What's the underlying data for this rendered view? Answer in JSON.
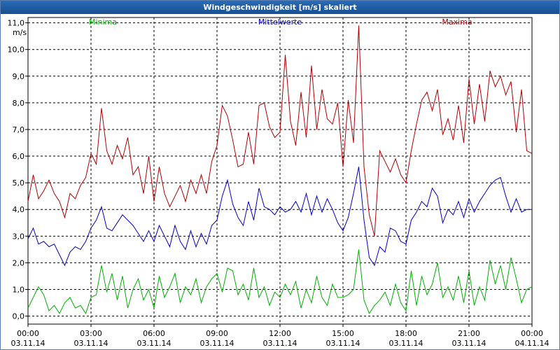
{
  "chart_data": {
    "type": "line",
    "title": "Windgeschwindigkeit [m/s] skaliert",
    "ylabel": "m/s",
    "ylim": [
      -0.3,
      11.2
    ],
    "xlim": [
      0,
      24
    ],
    "grid": true,
    "yticks": [
      "0,0",
      "1,0",
      "2,0",
      "3,0",
      "4,0",
      "5,0",
      "6,0",
      "7,0",
      "8,0",
      "9,0",
      "10,0",
      "11,0"
    ],
    "ytick_values": [
      0,
      1,
      2,
      3,
      4,
      5,
      6,
      7,
      8,
      9,
      10,
      11
    ],
    "xticks": [
      {
        "time": "00:00",
        "date": "03.11.14",
        "x": 0
      },
      {
        "time": "03:00",
        "date": "03.11.14",
        "x": 3
      },
      {
        "time": "06:00",
        "date": "03.11.14",
        "x": 6
      },
      {
        "time": "09:00",
        "date": "03.11.14",
        "x": 9
      },
      {
        "time": "12:00",
        "date": "03.11.14",
        "x": 12
      },
      {
        "time": "15:00",
        "date": "03.11.14",
        "x": 15
      },
      {
        "time": "18:00",
        "date": "03.11.14",
        "x": 18
      },
      {
        "time": "21:00",
        "date": "03.11.14",
        "x": 21
      },
      {
        "time": "00:00",
        "date": "04.11.14",
        "x": 24
      }
    ],
    "legend": [
      {
        "name": "Minima",
        "color": "#00b000"
      },
      {
        "name": "Mittelwerte",
        "color": "#0000c0"
      },
      {
        "name": "Maxima",
        "color": "#b00000"
      }
    ],
    "series": [
      {
        "name": "Maxima",
        "color": "#b00000",
        "x": [
          0,
          0.25,
          0.5,
          0.75,
          1,
          1.25,
          1.5,
          1.75,
          2,
          2.25,
          2.5,
          2.75,
          3,
          3.25,
          3.5,
          3.75,
          4,
          4.25,
          4.5,
          4.75,
          5,
          5.25,
          5.5,
          5.75,
          6,
          6.25,
          6.5,
          6.75,
          7,
          7.25,
          7.5,
          7.75,
          8,
          8.25,
          8.5,
          8.75,
          9,
          9.25,
          9.5,
          9.75,
          10,
          10.25,
          10.5,
          10.75,
          11,
          11.25,
          11.5,
          11.75,
          12,
          12.25,
          12.5,
          12.75,
          13,
          13.25,
          13.5,
          13.75,
          14,
          14.25,
          14.5,
          14.75,
          15,
          15.25,
          15.5,
          15.75,
          16,
          16.25,
          16.5,
          16.75,
          17,
          17.25,
          17.5,
          17.75,
          18,
          18.25,
          18.5,
          18.75,
          19,
          19.25,
          19.5,
          19.75,
          20,
          20.25,
          20.5,
          20.75,
          21,
          21.25,
          21.5,
          21.75,
          22,
          22.25,
          22.5,
          22.75,
          23,
          23.25,
          23.5,
          23.75,
          24
        ],
        "values": [
          4.3,
          5.3,
          4.4,
          4.7,
          5.1,
          4.6,
          4.3,
          3.7,
          4.6,
          4.4,
          4.9,
          5.2,
          6.1,
          5.7,
          7.8,
          6.2,
          5.7,
          6.4,
          5.9,
          6.7,
          5.3,
          5.6,
          4.6,
          6.0,
          4.3,
          5.6,
          4.6,
          4.1,
          4.5,
          4.9,
          4.3,
          5.1,
          4.6,
          5.3,
          4.6,
          5.8,
          6.4,
          7.9,
          7.5,
          6.6,
          5.6,
          5.7,
          6.9,
          5.7,
          7.9,
          8.0,
          7.1,
          6.7,
          6.9,
          9.8,
          7.3,
          6.4,
          8.4,
          6.7,
          9.4,
          7.0,
          8.5,
          7.4,
          7.2,
          8.0,
          5.6,
          8.1,
          6.5,
          10.9,
          5.6,
          3.8,
          3.0,
          6.2,
          5.8,
          5.4,
          5.9,
          5.3,
          5.0,
          6.2,
          7.2,
          8.1,
          8.4,
          7.7,
          8.5,
          6.8,
          7.4,
          6.6,
          7.9,
          6.5,
          8.9,
          7.2,
          8.7,
          7.3,
          9.2,
          8.6,
          9.0,
          8.3,
          8.8,
          6.9,
          8.5,
          6.2,
          6.1
        ]
      },
      {
        "name": "Mittelwerte",
        "color": "#0000c0",
        "x": [
          0,
          0.25,
          0.5,
          0.75,
          1,
          1.25,
          1.5,
          1.75,
          2,
          2.25,
          2.5,
          2.75,
          3,
          3.25,
          3.5,
          3.75,
          4,
          4.25,
          4.5,
          4.75,
          5,
          5.25,
          5.5,
          5.75,
          6,
          6.25,
          6.5,
          6.75,
          7,
          7.25,
          7.5,
          7.75,
          8,
          8.25,
          8.5,
          8.75,
          9,
          9.25,
          9.5,
          9.75,
          10,
          10.25,
          10.5,
          10.75,
          11,
          11.25,
          11.5,
          11.75,
          12,
          12.25,
          12.5,
          12.75,
          13,
          13.25,
          13.5,
          13.75,
          14,
          14.25,
          14.5,
          14.75,
          15,
          15.25,
          15.5,
          15.75,
          16,
          16.25,
          16.5,
          16.75,
          17,
          17.25,
          17.5,
          17.75,
          18,
          18.25,
          18.5,
          18.75,
          19,
          19.25,
          19.5,
          19.75,
          20,
          20.25,
          20.5,
          20.75,
          21,
          21.25,
          21.5,
          21.75,
          22,
          22.25,
          22.5,
          22.75,
          23,
          23.25,
          23.5,
          23.75,
          24
        ],
        "values": [
          2.9,
          3.3,
          2.7,
          2.8,
          2.6,
          2.7,
          2.3,
          1.9,
          2.4,
          2.6,
          2.5,
          2.8,
          3.3,
          3.6,
          4.1,
          3.3,
          3.2,
          3.5,
          3.8,
          3.6,
          3.4,
          3.1,
          2.8,
          3.2,
          2.8,
          3.4,
          3.0,
          2.6,
          3.4,
          2.8,
          2.5,
          3.2,
          2.6,
          3.1,
          2.7,
          3.4,
          3.6,
          4.5,
          5.1,
          4.2,
          3.7,
          3.4,
          4.3,
          3.6,
          4.8,
          4.1,
          4.0,
          3.8,
          4.1,
          3.9,
          4.0,
          4.3,
          3.9,
          4.6,
          3.8,
          4.5,
          3.9,
          4.4,
          4.0,
          3.5,
          3.2,
          3.7,
          4.6,
          5.6,
          3.6,
          2.2,
          1.9,
          2.6,
          2.4,
          3.3,
          3.2,
          2.8,
          2.7,
          3.6,
          3.9,
          4.3,
          4.1,
          4.8,
          4.5,
          3.5,
          4.0,
          3.8,
          4.3,
          3.7,
          4.4,
          3.9,
          4.3,
          4.6,
          4.9,
          5.1,
          5.2,
          4.5,
          3.9,
          4.4,
          3.9,
          4.0,
          4.0
        ]
      },
      {
        "name": "Minima",
        "color": "#00b000",
        "x": [
          0,
          0.25,
          0.5,
          0.75,
          1,
          1.25,
          1.5,
          1.75,
          2,
          2.25,
          2.5,
          2.75,
          3,
          3.25,
          3.5,
          3.75,
          4,
          4.25,
          4.5,
          4.75,
          5,
          5.25,
          5.5,
          5.75,
          6,
          6.25,
          6.5,
          6.75,
          7,
          7.25,
          7.5,
          7.75,
          8,
          8.25,
          8.5,
          8.75,
          9,
          9.25,
          9.5,
          9.75,
          10,
          10.25,
          10.5,
          10.75,
          11,
          11.25,
          11.5,
          11.75,
          12,
          12.25,
          12.5,
          12.75,
          13,
          13.25,
          13.5,
          13.75,
          14,
          14.25,
          14.5,
          14.75,
          15,
          15.25,
          15.5,
          15.75,
          16,
          16.25,
          16.5,
          16.75,
          17,
          17.25,
          17.5,
          17.75,
          18,
          18.25,
          18.5,
          18.75,
          19,
          19.25,
          19.5,
          19.75,
          20,
          20.25,
          20.5,
          20.75,
          21,
          21.25,
          21.5,
          21.75,
          22,
          22.25,
          22.5,
          22.75,
          23,
          23.25,
          23.5,
          23.75,
          24
        ],
        "values": [
          0.3,
          0.7,
          1.1,
          0.8,
          0.2,
          0.4,
          0.1,
          0.5,
          0.7,
          0.3,
          0.4,
          0.1,
          0.7,
          0.8,
          1.9,
          0.9,
          1.6,
          0.6,
          1.5,
          0.3,
          1.0,
          1.4,
          0.6,
          1.0,
          0.3,
          1.5,
          0.7,
          1.1,
          1.6,
          0.5,
          1.1,
          0.8,
          1.4,
          0.5,
          1.1,
          1.4,
          1.6,
          0.9,
          1.8,
          1.7,
          0.8,
          1.2,
          0.6,
          1.8,
          0.7,
          1.1,
          0.4,
          0.9,
          0.7,
          1.2,
          0.8,
          1.3,
          0.3,
          1.0,
          0.5,
          1.5,
          0.7,
          0.4,
          1.2,
          0.7,
          0.7,
          0.8,
          1.0,
          2.5,
          0.6,
          0.1,
          0.4,
          0.6,
          0.9,
          0.4,
          1.2,
          0.5,
          0.2,
          1.7,
          0.4,
          1.5,
          0.8,
          1.2,
          2.0,
          0.7,
          1.1,
          0.6,
          1.5,
          0.5,
          1.7,
          0.4,
          1.1,
          0.6,
          2.1,
          1.2,
          1.9,
          1.0,
          2.2,
          1.4,
          0.5,
          1.0,
          1.1
        ]
      }
    ]
  }
}
